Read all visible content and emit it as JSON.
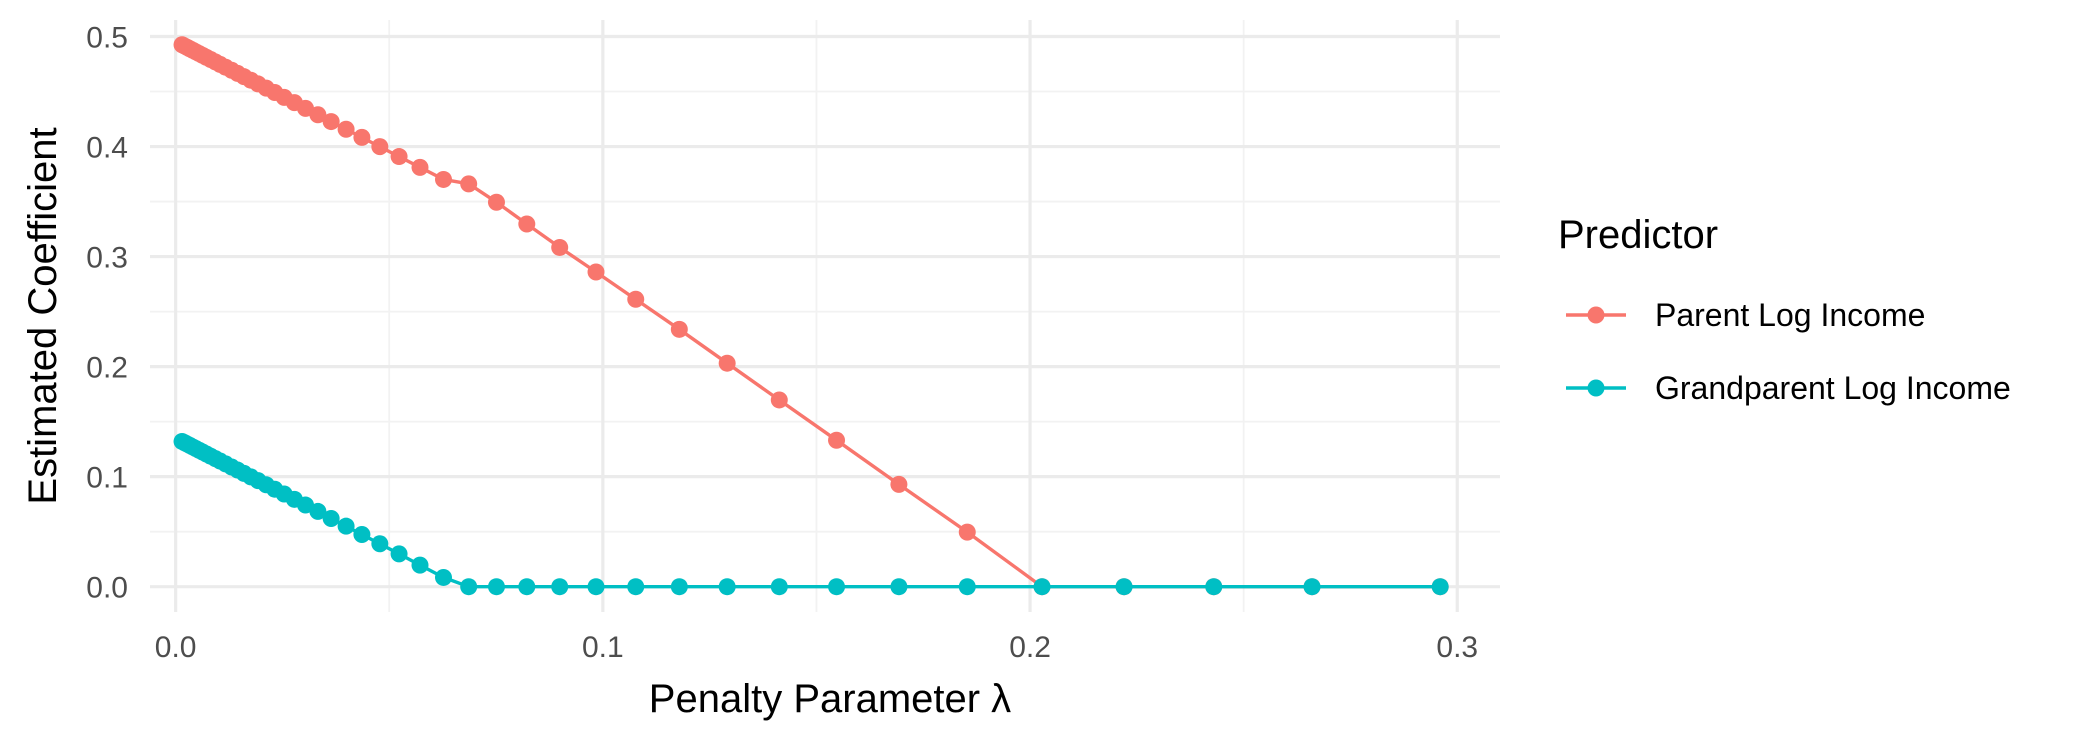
{
  "chart_data": {
    "type": "line",
    "title": "",
    "xlabel": "Penalty Parameter λ",
    "ylabel": "Estimated Coefficient",
    "xlim": [
      -0.006,
      0.31
    ],
    "ylim": [
      -0.023,
      0.515
    ],
    "xticks": [
      0.0,
      0.1,
      0.2,
      0.3
    ],
    "xtick_labels": [
      "0.0",
      "0.1",
      "0.2",
      "0.3"
    ],
    "yticks": [
      0.0,
      0.1,
      0.2,
      0.3,
      0.4,
      0.5
    ],
    "ytick_labels": [
      "0.0",
      "0.1",
      "0.2",
      "0.3",
      "0.4",
      "0.5"
    ],
    "grid": true,
    "legend": {
      "title": "Predictor",
      "position": "right"
    },
    "x": [
      0.0015,
      0.0021,
      0.0027,
      0.0033,
      0.004,
      0.0047,
      0.0055,
      0.0063,
      0.0072,
      0.0082,
      0.0093,
      0.0104,
      0.0117,
      0.0131,
      0.0145,
      0.016,
      0.0176,
      0.0193,
      0.0212,
      0.0232,
      0.0254,
      0.0278,
      0.0304,
      0.0333,
      0.0364,
      0.0399,
      0.0436,
      0.0478,
      0.0523,
      0.0572,
      0.0627,
      0.0686,
      0.0751,
      0.0822,
      0.0899,
      0.0984,
      0.1077,
      0.1179,
      0.1291,
      0.1413,
      0.1547,
      0.1693,
      0.1853,
      0.2028,
      0.222,
      0.243,
      0.266,
      0.296
    ],
    "series": [
      {
        "name": "Parent Log Income",
        "color": "#f8766d",
        "values": [
          0.4925,
          0.4913,
          0.4901,
          0.4889,
          0.4875,
          0.4861,
          0.4845,
          0.4829,
          0.4811,
          0.4791,
          0.4769,
          0.4747,
          0.4721,
          0.4693,
          0.4665,
          0.4635,
          0.4603,
          0.4569,
          0.4531,
          0.4491,
          0.4447,
          0.4399,
          0.4347,
          0.4289,
          0.4227,
          0.4157,
          0.4083,
          0.3999,
          0.3909,
          0.3811,
          0.3701,
          0.3661,
          0.3494,
          0.3296,
          0.3083,
          0.286,
          0.2612,
          0.2339,
          0.2031,
          0.1697,
          0.1331,
          0.093,
          0.0496,
          0.0,
          0.0,
          0.0,
          0.0,
          0.0
        ]
      },
      {
        "name": "Grandparent Log Income",
        "color": "#00bfc4",
        "values": [
          0.132,
          0.1308,
          0.1296,
          0.1284,
          0.127,
          0.1256,
          0.124,
          0.1224,
          0.1206,
          0.1186,
          0.1164,
          0.1142,
          0.1116,
          0.1088,
          0.106,
          0.103,
          0.0998,
          0.0964,
          0.0926,
          0.0886,
          0.0842,
          0.0794,
          0.0742,
          0.0684,
          0.062,
          0.055,
          0.0474,
          0.039,
          0.0298,
          0.0196,
          0.0084,
          0.0,
          0.0,
          0.0,
          0.0,
          0.0,
          0.0,
          0.0,
          0.0,
          0.0,
          0.0,
          0.0,
          0.0,
          0.0,
          0.0,
          0.0,
          0.0,
          0.0
        ]
      }
    ]
  }
}
